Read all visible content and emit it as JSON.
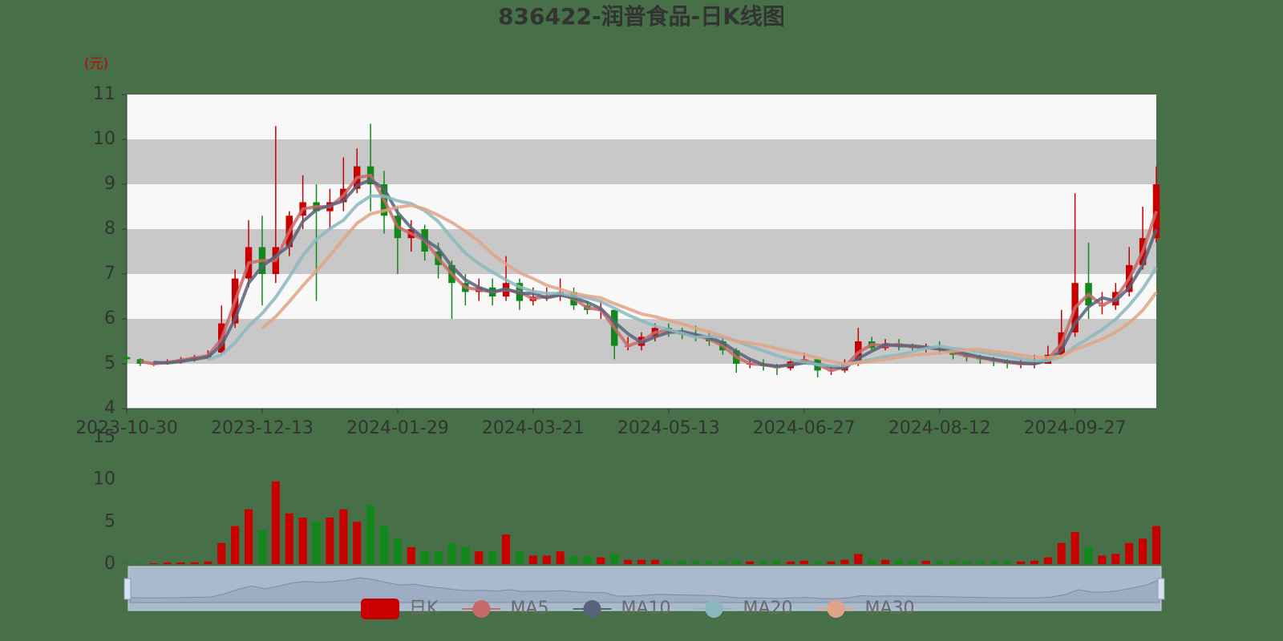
{
  "chart_data": {
    "type": "candlestick",
    "title": "836422-润普食品-日K线图",
    "y_label": "(元)",
    "categories": [
      "2023-10-30",
      null,
      null,
      null,
      null,
      null,
      null,
      null,
      null,
      null,
      "2023-12-13",
      null,
      null,
      null,
      null,
      null,
      null,
      null,
      null,
      null,
      "2024-01-29",
      null,
      null,
      null,
      null,
      null,
      null,
      null,
      null,
      null,
      "2024-03-21",
      null,
      null,
      null,
      null,
      null,
      null,
      null,
      null,
      null,
      "2024-05-13",
      null,
      null,
      null,
      null,
      null,
      null,
      null,
      null,
      null,
      "2024-06-27",
      null,
      null,
      null,
      null,
      null,
      null,
      null,
      null,
      null,
      "2024-08-12",
      null,
      null,
      null,
      null,
      null,
      null,
      null,
      null,
      null,
      "2024-09-27",
      null,
      null,
      null,
      null,
      null,
      null
    ],
    "ylim": [
      4,
      11
    ],
    "yticks": [
      4,
      5,
      6,
      7,
      8,
      9,
      10,
      11
    ],
    "grid": true,
    "series": [
      {
        "name": "日K",
        "type": "candlestick",
        "color": "#c80000",
        "up_color": "#c80000",
        "down_color": "#12881a",
        "values": [
          [
            5.15,
            5.1,
            5.0,
            5.2
          ],
          [
            5.1,
            5.0,
            4.95,
            5.12
          ],
          [
            5.0,
            5.0,
            4.95,
            5.05
          ],
          [
            5.0,
            5.05,
            4.98,
            5.1
          ],
          [
            5.05,
            5.1,
            5.0,
            5.15
          ],
          [
            5.1,
            5.15,
            5.05,
            5.2
          ],
          [
            5.15,
            5.2,
            5.1,
            5.3
          ],
          [
            5.25,
            5.9,
            5.2,
            6.3
          ],
          [
            5.9,
            6.9,
            5.8,
            7.1
          ],
          [
            6.9,
            7.6,
            6.7,
            8.2
          ],
          [
            7.6,
            7.0,
            6.3,
            8.3
          ],
          [
            7.0,
            7.6,
            6.8,
            10.3
          ],
          [
            7.6,
            8.3,
            7.4,
            8.4
          ],
          [
            8.3,
            8.6,
            8.0,
            9.2
          ],
          [
            8.6,
            8.4,
            6.4,
            9.0
          ],
          [
            8.4,
            8.6,
            8.0,
            8.9
          ],
          [
            8.6,
            8.9,
            8.4,
            9.6
          ],
          [
            8.9,
            9.4,
            8.8,
            9.8
          ],
          [
            9.4,
            9.0,
            8.4,
            10.35
          ],
          [
            9.0,
            8.3,
            7.9,
            9.3
          ],
          [
            8.3,
            7.8,
            7.0,
            8.5
          ],
          [
            7.8,
            8.0,
            7.5,
            8.2
          ],
          [
            8.0,
            7.5,
            7.3,
            8.1
          ],
          [
            7.5,
            7.2,
            6.9,
            7.7
          ],
          [
            7.2,
            6.8,
            6.0,
            7.3
          ],
          [
            6.8,
            6.6,
            6.3,
            7.0
          ],
          [
            6.6,
            6.7,
            6.4,
            6.9
          ],
          [
            6.7,
            6.5,
            6.3,
            6.9
          ],
          [
            6.5,
            6.8,
            6.4,
            7.4
          ],
          [
            6.8,
            6.4,
            6.2,
            6.9
          ],
          [
            6.4,
            6.5,
            6.3,
            6.7
          ],
          [
            6.5,
            6.5,
            6.4,
            6.7
          ],
          [
            6.5,
            6.6,
            6.4,
            6.9
          ],
          [
            6.6,
            6.3,
            6.2,
            6.7
          ],
          [
            6.3,
            6.2,
            6.1,
            6.4
          ],
          [
            6.2,
            6.2,
            6.0,
            6.4
          ],
          [
            6.2,
            5.4,
            5.1,
            6.2
          ],
          [
            5.4,
            5.4,
            5.3,
            5.6
          ],
          [
            5.4,
            5.6,
            5.3,
            5.7
          ],
          [
            5.6,
            5.8,
            5.5,
            5.9
          ],
          [
            5.8,
            5.7,
            5.6,
            5.9
          ],
          [
            5.7,
            5.65,
            5.55,
            5.8
          ],
          [
            5.65,
            5.6,
            5.5,
            5.85
          ],
          [
            5.6,
            5.5,
            5.4,
            5.7
          ],
          [
            5.5,
            5.3,
            5.2,
            5.6
          ],
          [
            5.3,
            5.0,
            4.8,
            5.35
          ],
          [
            5.0,
            5.0,
            4.9,
            5.1
          ],
          [
            5.0,
            4.95,
            4.85,
            5.1
          ],
          [
            4.95,
            4.9,
            4.75,
            5.0
          ],
          [
            4.9,
            5.05,
            4.85,
            5.1
          ],
          [
            5.05,
            5.1,
            5.0,
            5.25
          ],
          [
            5.1,
            4.85,
            4.7,
            5.1
          ],
          [
            4.85,
            4.85,
            4.75,
            4.95
          ],
          [
            4.85,
            5.0,
            4.8,
            5.1
          ],
          [
            5.0,
            5.5,
            4.95,
            5.8
          ],
          [
            5.5,
            5.35,
            5.3,
            5.6
          ],
          [
            5.35,
            5.45,
            5.3,
            5.55
          ],
          [
            5.45,
            5.4,
            5.3,
            5.55
          ],
          [
            5.4,
            5.35,
            5.3,
            5.45
          ],
          [
            5.35,
            5.35,
            5.25,
            5.45
          ],
          [
            5.35,
            5.3,
            5.2,
            5.5
          ],
          [
            5.3,
            5.2,
            5.1,
            5.35
          ],
          [
            5.2,
            5.15,
            5.05,
            5.25
          ],
          [
            5.15,
            5.1,
            5.0,
            5.2
          ],
          [
            5.1,
            5.05,
            4.95,
            5.15
          ],
          [
            5.05,
            5.0,
            4.9,
            5.1
          ],
          [
            5.0,
            5.0,
            4.9,
            5.1
          ],
          [
            5.0,
            5.0,
            4.9,
            5.2
          ],
          [
            5.0,
            5.2,
            5.0,
            5.4
          ],
          [
            5.2,
            5.7,
            5.15,
            6.2
          ],
          [
            5.7,
            6.8,
            5.6,
            8.8
          ],
          [
            6.8,
            6.3,
            6.0,
            7.7
          ],
          [
            6.3,
            6.3,
            6.1,
            6.6
          ],
          [
            6.3,
            6.6,
            6.2,
            6.8
          ],
          [
            6.6,
            7.2,
            6.5,
            7.6
          ],
          [
            7.2,
            7.8,
            7.1,
            8.5
          ],
          [
            7.8,
            9.0,
            7.7,
            9.4
          ]
        ]
      },
      {
        "name": "MA5",
        "type": "line",
        "color": "#c96a6a",
        "values": [
          null,
          5.05,
          5.0,
          5.03,
          5.08,
          5.13,
          5.18,
          5.55,
          6.4,
          7.25,
          7.3,
          7.3,
          7.95,
          8.45,
          8.5,
          8.5,
          8.75,
          9.15,
          9.2,
          8.65,
          8.05,
          7.9,
          7.75,
          7.35,
          7.0,
          6.7,
          6.65,
          6.6,
          6.65,
          6.6,
          6.45,
          6.5,
          6.55,
          6.45,
          6.25,
          6.2,
          5.8,
          5.4,
          5.5,
          5.7,
          5.75,
          5.68,
          5.63,
          5.55,
          5.4,
          5.15,
          5.0,
          4.98,
          4.93,
          4.98,
          5.08,
          4.98,
          4.85,
          4.93,
          5.25,
          5.43,
          5.4,
          5.43,
          5.38,
          5.35,
          5.33,
          5.25,
          5.18,
          5.13,
          5.08,
          5.03,
          5.0,
          5.0,
          5.1,
          5.45,
          6.25,
          6.55,
          6.3,
          6.45,
          6.9,
          7.5,
          8.4
        ]
      },
      {
        "name": "MA10",
        "type": "line",
        "color": "#56637a",
        "values": [
          null,
          null,
          5.03,
          5.02,
          5.05,
          5.1,
          5.15,
          5.42,
          6.0,
          6.8,
          7.17,
          7.4,
          7.63,
          8.17,
          8.43,
          8.53,
          8.63,
          8.97,
          9.1,
          8.9,
          8.37,
          8.03,
          7.77,
          7.57,
          7.17,
          6.87,
          6.7,
          6.6,
          6.67,
          6.57,
          6.57,
          6.47,
          6.53,
          6.47,
          6.37,
          6.23,
          5.93,
          5.67,
          5.47,
          5.6,
          5.7,
          5.72,
          5.65,
          5.58,
          5.47,
          5.27,
          5.1,
          4.98,
          4.95,
          4.97,
          5.02,
          5.0,
          4.93,
          4.9,
          5.12,
          5.28,
          5.43,
          5.4,
          5.4,
          5.37,
          5.33,
          5.28,
          5.22,
          5.15,
          5.1,
          5.05,
          5.02,
          5.0,
          5.07,
          5.3,
          5.9,
          6.27,
          6.47,
          6.4,
          6.7,
          7.2,
          8.0
        ]
      },
      {
        "name": "MA20",
        "type": "line",
        "color": "#8ab8be",
        "values": [
          null,
          null,
          null,
          null,
          null,
          null,
          5.09,
          5.2,
          5.47,
          5.84,
          6.12,
          6.48,
          6.93,
          7.41,
          7.77,
          8.01,
          8.2,
          8.54,
          8.74,
          8.74,
          8.63,
          8.57,
          8.41,
          8.17,
          7.8,
          7.46,
          7.23,
          7.04,
          6.87,
          6.71,
          6.61,
          6.57,
          6.57,
          6.51,
          6.47,
          6.39,
          6.24,
          6.09,
          5.96,
          5.84,
          5.76,
          5.68,
          5.59,
          5.61,
          5.59,
          5.51,
          5.39,
          5.29,
          5.18,
          5.1,
          5.04,
          4.98,
          4.96,
          4.96,
          5.04,
          5.1,
          5.16,
          5.2,
          5.27,
          5.34,
          5.39,
          5.34,
          5.31,
          5.26,
          5.21,
          5.16,
          5.11,
          5.07,
          5.07,
          5.15,
          5.39,
          5.57,
          5.76,
          5.99,
          6.3,
          6.67,
          7.14
        ]
      },
      {
        "name": "MA30",
        "type": "line",
        "color": "#e1a486",
        "values": [
          null,
          null,
          null,
          null,
          null,
          null,
          null,
          null,
          null,
          null,
          5.79,
          6.05,
          6.38,
          6.74,
          7.07,
          7.41,
          7.78,
          8.13,
          8.34,
          8.41,
          8.49,
          8.53,
          8.45,
          8.31,
          8.15,
          7.95,
          7.73,
          7.44,
          7.22,
          7.03,
          6.9,
          6.75,
          6.66,
          6.57,
          6.51,
          6.47,
          6.34,
          6.23,
          6.11,
          6.05,
          5.97,
          5.89,
          5.79,
          5.71,
          5.62,
          5.5,
          5.46,
          5.41,
          5.34,
          5.27,
          5.21,
          5.13,
          5.05,
          5.0,
          5.02,
          5.06,
          5.1,
          5.15,
          5.19,
          5.22,
          5.24,
          5.28,
          5.31,
          5.32,
          5.27,
          5.24,
          5.19,
          5.15,
          5.14,
          5.17,
          5.32,
          5.43,
          5.55,
          5.7,
          5.91,
          6.19,
          6.59
        ]
      }
    ],
    "volume": {
      "ylim": [
        0,
        15
      ],
      "yticks": [
        0,
        5,
        10,
        15
      ],
      "values": [
        0.1,
        0.1,
        0.1,
        0.2,
        0.2,
        0.2,
        0.3,
        2.5,
        4.5,
        6.5,
        4.0,
        9.8,
        6.0,
        5.5,
        5.0,
        5.5,
        6.5,
        5.0,
        7.0,
        4.5,
        3.0,
        2.0,
        1.5,
        1.5,
        2.5,
        2.0,
        1.5,
        1.5,
        3.5,
        1.5,
        1.0,
        1.0,
        1.5,
        1.0,
        1.0,
        0.8,
        1.2,
        0.5,
        0.5,
        0.5,
        0.4,
        0.4,
        0.4,
        0.3,
        0.3,
        0.4,
        0.3,
        0.3,
        0.4,
        0.3,
        0.4,
        0.3,
        0.3,
        0.5,
        1.2,
        0.5,
        0.5,
        0.5,
        0.4,
        0.4,
        0.4,
        0.4,
        0.3,
        0.3,
        0.3,
        0.3,
        0.3,
        0.4,
        0.8,
        2.5,
        3.8,
        2.0,
        1.0,
        1.2,
        2.5,
        3.0,
        4.5
      ]
    }
  }
}
